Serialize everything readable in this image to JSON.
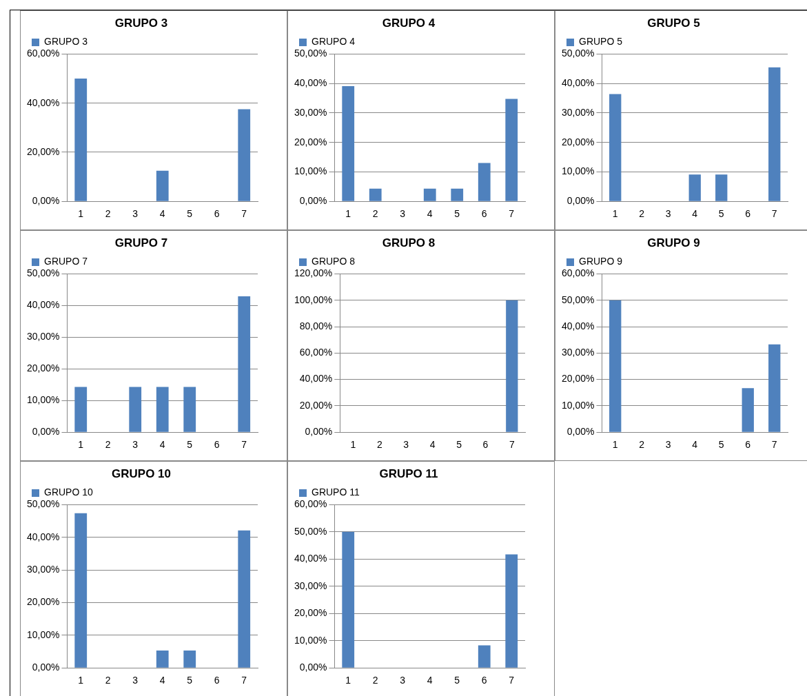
{
  "chart_data": [
    {
      "type": "bar",
      "title": "GRUPO 3",
      "categories": [
        "1",
        "2",
        "3",
        "4",
        "5",
        "6",
        "7"
      ],
      "series": [
        {
          "name": "GRUPO 3",
          "color": "#4f81bd",
          "values": [
            50,
            0,
            0,
            12.5,
            0,
            0,
            37.5
          ]
        }
      ],
      "ylim": [
        0,
        60
      ],
      "yticks": [
        {
          "value": 0,
          "label": "0,00%"
        },
        {
          "value": 20,
          "label": "20,00%"
        },
        {
          "value": 40,
          "label": "40,00%"
        },
        {
          "value": 60,
          "label": "60,00%"
        }
      ],
      "grid": "y",
      "legend": "top left"
    },
    {
      "type": "bar",
      "title": "GRUPO 4",
      "categories": [
        "1",
        "2",
        "3",
        "4",
        "5",
        "6",
        "7"
      ],
      "series": [
        {
          "name": "GRUPO 4",
          "color": "#4f81bd",
          "values": [
            39.1,
            4.3,
            0,
            4.3,
            4.3,
            13.0,
            34.8
          ]
        }
      ],
      "ylim": [
        0,
        50
      ],
      "yticks": [
        {
          "value": 0,
          "label": "0,00%"
        },
        {
          "value": 10,
          "label": "10,00%"
        },
        {
          "value": 20,
          "label": "20,00%"
        },
        {
          "value": 30,
          "label": "30,00%"
        },
        {
          "value": 40,
          "label": "40,00%"
        },
        {
          "value": 50,
          "label": "50,00%"
        }
      ],
      "grid": "y",
      "legend": "top left"
    },
    {
      "type": "bar",
      "title": "GRUPO 5",
      "categories": [
        "1",
        "2",
        "3",
        "4",
        "5",
        "6",
        "7"
      ],
      "series": [
        {
          "name": "GRUPO 5",
          "color": "#4f81bd",
          "values": [
            36.4,
            0,
            0,
            9.1,
            9.1,
            0,
            45.5
          ]
        }
      ],
      "ylim": [
        0,
        50
      ],
      "yticks": [
        {
          "value": 0,
          "label": "0,00%"
        },
        {
          "value": 10,
          "label": "10,00%"
        },
        {
          "value": 20,
          "label": "20,00%"
        },
        {
          "value": 30,
          "label": "30,00%"
        },
        {
          "value": 40,
          "label": "40,00%"
        },
        {
          "value": 50,
          "label": "50,00%"
        }
      ],
      "grid": "y",
      "legend": "top left"
    },
    {
      "type": "bar",
      "title": "GRUPO 7",
      "categories": [
        "1",
        "2",
        "3",
        "4",
        "5",
        "6",
        "7"
      ],
      "series": [
        {
          "name": "GRUPO 7",
          "color": "#4f81bd",
          "values": [
            14.3,
            0,
            14.3,
            14.3,
            14.3,
            0,
            42.9
          ]
        }
      ],
      "ylim": [
        0,
        50
      ],
      "yticks": [
        {
          "value": 0,
          "label": "0,00%"
        },
        {
          "value": 10,
          "label": "10,00%"
        },
        {
          "value": 20,
          "label": "20,00%"
        },
        {
          "value": 30,
          "label": "30,00%"
        },
        {
          "value": 40,
          "label": "40,00%"
        },
        {
          "value": 50,
          "label": "50,00%"
        }
      ],
      "grid": "y",
      "legend": "top left"
    },
    {
      "type": "bar",
      "title": "GRUPO 8",
      "categories": [
        "1",
        "2",
        "3",
        "4",
        "5",
        "6",
        "7"
      ],
      "series": [
        {
          "name": "GRUPO 8",
          "color": "#4f81bd",
          "values": [
            0,
            0,
            0,
            0,
            0,
            0,
            100
          ]
        }
      ],
      "ylim": [
        0,
        120
      ],
      "yticks": [
        {
          "value": 0,
          "label": "0,00%"
        },
        {
          "value": 20,
          "label": "20,00%"
        },
        {
          "value": 40,
          "label": "40,00%"
        },
        {
          "value": 60,
          "label": "60,00%"
        },
        {
          "value": 80,
          "label": "80,00%"
        },
        {
          "value": 100,
          "label": "100,00%"
        },
        {
          "value": 120,
          "label": "120,00%"
        }
      ],
      "grid": "y",
      "legend": "top left"
    },
    {
      "type": "bar",
      "title": "GRUPO 9",
      "categories": [
        "1",
        "2",
        "3",
        "4",
        "5",
        "6",
        "7"
      ],
      "series": [
        {
          "name": "GRUPO 9",
          "color": "#4f81bd",
          "values": [
            50,
            0,
            0,
            0,
            0,
            16.7,
            33.3
          ]
        }
      ],
      "ylim": [
        0,
        60
      ],
      "yticks": [
        {
          "value": 0,
          "label": "0,00%"
        },
        {
          "value": 10,
          "label": "10,00%"
        },
        {
          "value": 20,
          "label": "20,00%"
        },
        {
          "value": 30,
          "label": "30,00%"
        },
        {
          "value": 40,
          "label": "40,00%"
        },
        {
          "value": 50,
          "label": "50,00%"
        },
        {
          "value": 60,
          "label": "60,00%"
        }
      ],
      "grid": "y",
      "legend": "top left"
    },
    {
      "type": "bar",
      "title": "GRUPO 10",
      "categories": [
        "1",
        "2",
        "3",
        "4",
        "5",
        "6",
        "7"
      ],
      "series": [
        {
          "name": "GRUPO 10",
          "color": "#4f81bd",
          "values": [
            47.4,
            0,
            0,
            5.3,
            5.3,
            0,
            42.1
          ]
        }
      ],
      "ylim": [
        0,
        50
      ],
      "yticks": [
        {
          "value": 0,
          "label": "0,00%"
        },
        {
          "value": 10,
          "label": "10,00%"
        },
        {
          "value": 20,
          "label": "20,00%"
        },
        {
          "value": 30,
          "label": "30,00%"
        },
        {
          "value": 40,
          "label": "40,00%"
        },
        {
          "value": 50,
          "label": "50,00%"
        }
      ],
      "grid": "y",
      "legend": "top left"
    },
    {
      "type": "bar",
      "title": "GRUPO 11",
      "categories": [
        "1",
        "2",
        "3",
        "4",
        "5",
        "6",
        "7"
      ],
      "series": [
        {
          "name": "GRUPO 11",
          "color": "#4f81bd",
          "values": [
            50,
            0,
            0,
            0,
            0,
            8.3,
            41.7
          ]
        }
      ],
      "ylim": [
        0,
        60
      ],
      "yticks": [
        {
          "value": 0,
          "label": "0,00%"
        },
        {
          "value": 10,
          "label": "10,00%"
        },
        {
          "value": 20,
          "label": "20,00%"
        },
        {
          "value": 30,
          "label": "30,00%"
        },
        {
          "value": 40,
          "label": "40,00%"
        },
        {
          "value": 50,
          "label": "50,00%"
        },
        {
          "value": 60,
          "label": "60,00%"
        }
      ],
      "grid": "y",
      "legend": "top left"
    }
  ]
}
